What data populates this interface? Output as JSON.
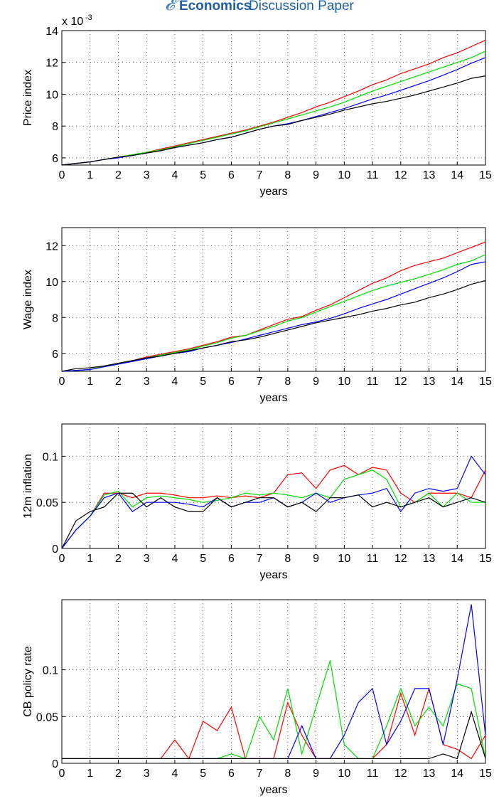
{
  "header": {
    "brand": "Economics",
    "subtitle": "Discussion Paper"
  },
  "chart_data": [
    {
      "type": "line",
      "ylabel": "Price index",
      "xlabel": "years",
      "y_exponent": {
        "base": "x 10",
        "power": "-3"
      },
      "x": [
        0,
        0.5,
        1,
        1.5,
        2,
        2.5,
        3,
        3.5,
        4,
        4.5,
        5,
        5.5,
        6,
        6.5,
        7,
        7.5,
        8,
        8.5,
        9,
        9.5,
        10,
        10.5,
        11,
        11.5,
        12,
        12.5,
        13,
        13.5,
        14,
        14.5,
        15
      ],
      "xlim": [
        0,
        15
      ],
      "xticks": [
        0,
        1,
        2,
        3,
        4,
        5,
        6,
        7,
        8,
        9,
        10,
        11,
        12,
        13,
        14,
        15
      ],
      "ylim": [
        5.55,
        14
      ],
      "yticks": [
        6,
        8,
        10,
        12,
        14
      ],
      "grid": true,
      "series": [
        {
          "color": "#ff0000",
          "values": [
            5.55,
            5.65,
            5.75,
            5.9,
            6.05,
            6.2,
            6.35,
            6.55,
            6.75,
            6.95,
            7.15,
            7.35,
            7.55,
            7.75,
            8.0,
            8.25,
            8.55,
            8.85,
            9.2,
            9.5,
            9.85,
            10.2,
            10.6,
            10.9,
            11.3,
            11.6,
            11.9,
            12.3,
            12.6,
            13.0,
            13.4
          ]
        },
        {
          "color": "#00dd00",
          "values": [
            5.55,
            5.65,
            5.75,
            5.9,
            6.05,
            6.2,
            6.35,
            6.5,
            6.7,
            6.9,
            7.1,
            7.3,
            7.5,
            7.7,
            7.95,
            8.2,
            8.45,
            8.7,
            8.95,
            9.2,
            9.5,
            9.85,
            10.2,
            10.5,
            10.8,
            11.1,
            11.4,
            11.7,
            12.0,
            12.3,
            12.7
          ]
        },
        {
          "color": "#0000ff",
          "values": [
            5.55,
            5.65,
            5.75,
            5.9,
            6.0,
            6.15,
            6.3,
            6.45,
            6.65,
            6.8,
            6.95,
            7.15,
            7.3,
            7.55,
            7.8,
            8.0,
            8.15,
            8.35,
            8.6,
            8.85,
            9.1,
            9.4,
            9.7,
            9.95,
            10.25,
            10.55,
            10.85,
            11.2,
            11.55,
            11.95,
            12.3
          ]
        },
        {
          "color": "#000000",
          "values": [
            5.55,
            5.65,
            5.75,
            5.9,
            6.05,
            6.15,
            6.3,
            6.45,
            6.65,
            6.8,
            6.95,
            7.15,
            7.3,
            7.55,
            7.8,
            8.0,
            8.1,
            8.35,
            8.55,
            8.75,
            9.0,
            9.2,
            9.4,
            9.55,
            9.75,
            9.95,
            10.2,
            10.45,
            10.7,
            11.0,
            11.15
          ]
        }
      ]
    },
    {
      "type": "line",
      "ylabel": "Wage index",
      "xlabel": "years",
      "x": [
        0,
        0.5,
        1,
        1.5,
        2,
        2.5,
        3,
        3.5,
        4,
        4.5,
        5,
        5.5,
        6,
        6.5,
        7,
        7.5,
        8,
        8.5,
        9,
        9.5,
        10,
        10.5,
        11,
        11.5,
        12,
        12.5,
        13,
        13.5,
        14,
        14.5,
        15
      ],
      "xlim": [
        0,
        15
      ],
      "xticks": [
        0,
        1,
        2,
        3,
        4,
        5,
        6,
        7,
        8,
        9,
        10,
        11,
        12,
        13,
        14,
        15
      ],
      "ylim": [
        5,
        13
      ],
      "yticks": [
        6,
        8,
        10,
        12
      ],
      "grid": true,
      "series": [
        {
          "color": "#ff0000",
          "values": [
            5.0,
            5.05,
            5.1,
            5.3,
            5.45,
            5.6,
            5.8,
            5.95,
            6.1,
            6.25,
            6.45,
            6.65,
            6.9,
            7.0,
            7.3,
            7.6,
            7.9,
            8.05,
            8.4,
            8.7,
            9.1,
            9.5,
            9.9,
            10.2,
            10.6,
            10.9,
            11.1,
            11.3,
            11.6,
            11.9,
            12.2
          ]
        },
        {
          "color": "#00dd00",
          "values": [
            5.0,
            5.05,
            5.1,
            5.3,
            5.45,
            5.6,
            5.75,
            5.9,
            6.05,
            6.2,
            6.4,
            6.6,
            6.85,
            7.0,
            7.25,
            7.5,
            7.8,
            8.0,
            8.3,
            8.6,
            8.9,
            9.2,
            9.5,
            9.75,
            9.95,
            10.15,
            10.4,
            10.65,
            10.95,
            11.15,
            11.5
          ]
        },
        {
          "color": "#0000ff",
          "values": [
            5.0,
            5.05,
            5.1,
            5.25,
            5.4,
            5.55,
            5.7,
            5.85,
            6.0,
            6.1,
            6.3,
            6.45,
            6.6,
            6.8,
            7.0,
            7.2,
            7.4,
            7.6,
            7.75,
            7.95,
            8.2,
            8.5,
            8.75,
            9.0,
            9.3,
            9.6,
            9.9,
            10.2,
            10.55,
            10.95,
            11.1
          ]
        },
        {
          "color": "#000000",
          "values": [
            5.0,
            5.15,
            5.2,
            5.3,
            5.45,
            5.6,
            5.75,
            5.85,
            6.0,
            6.15,
            6.3,
            6.45,
            6.65,
            6.75,
            6.9,
            7.1,
            7.3,
            7.5,
            7.7,
            7.85,
            8.0,
            8.15,
            8.35,
            8.5,
            8.7,
            8.85,
            9.1,
            9.3,
            9.55,
            9.85,
            10.05
          ]
        }
      ]
    },
    {
      "type": "line",
      "ylabel": "12m inflation",
      "xlabel": "years",
      "x": [
        0,
        0.5,
        1,
        1.5,
        2,
        2.5,
        3,
        3.5,
        4,
        4.5,
        5,
        5.5,
        6,
        6.5,
        7,
        7.5,
        8,
        8.5,
        9,
        9.5,
        10,
        10.5,
        11,
        11.5,
        12,
        12.5,
        13,
        13.5,
        14,
        14.5,
        15
      ],
      "xlim": [
        0,
        15
      ],
      "xticks": [
        0,
        1,
        2,
        3,
        4,
        5,
        6,
        7,
        8,
        9,
        10,
        11,
        12,
        13,
        14,
        15
      ],
      "ylim": [
        0,
        0.135
      ],
      "yticks": [
        0,
        0.05,
        0.1
      ],
      "grid": true,
      "series": [
        {
          "color": "#ff0000",
          "values": [
            0,
            0.02,
            0.035,
            0.06,
            0.06,
            0.055,
            0.06,
            0.06,
            0.058,
            0.055,
            0.055,
            0.057,
            0.055,
            0.057,
            0.055,
            0.06,
            0.08,
            0.082,
            0.065,
            0.085,
            0.09,
            0.08,
            0.088,
            0.085,
            0.06,
            0.05,
            0.06,
            0.06,
            0.06,
            0.055,
            0.085
          ]
        },
        {
          "color": "#00dd00",
          "values": [
            0,
            0.02,
            0.035,
            0.058,
            0.062,
            0.045,
            0.055,
            0.057,
            0.055,
            0.053,
            0.05,
            0.052,
            0.055,
            0.06,
            0.058,
            0.06,
            0.058,
            0.055,
            0.06,
            0.055,
            0.075,
            0.08,
            0.085,
            0.075,
            0.045,
            0.05,
            0.06,
            0.045,
            0.06,
            0.05,
            0.05
          ]
        },
        {
          "color": "#0000ff",
          "values": [
            0,
            0.02,
            0.035,
            0.055,
            0.06,
            0.04,
            0.05,
            0.05,
            0.05,
            0.048,
            0.045,
            0.055,
            0.045,
            0.05,
            0.05,
            0.055,
            0.045,
            0.05,
            0.06,
            0.05,
            0.055,
            0.058,
            0.06,
            0.065,
            0.04,
            0.06,
            0.065,
            0.062,
            0.065,
            0.1,
            0.08
          ]
        },
        {
          "color": "#000000",
          "values": [
            0,
            0.03,
            0.04,
            0.045,
            0.06,
            0.06,
            0.045,
            0.055,
            0.045,
            0.04,
            0.04,
            0.055,
            0.045,
            0.05,
            0.055,
            0.055,
            0.045,
            0.05,
            0.04,
            0.055,
            0.055,
            0.058,
            0.045,
            0.05,
            0.045,
            0.05,
            0.055,
            0.045,
            0.05,
            0.055,
            0.05
          ]
        }
      ]
    },
    {
      "type": "line",
      "ylabel": "CB policy rate",
      "xlabel": "years",
      "x": [
        0,
        0.5,
        1,
        1.5,
        2,
        2.5,
        3,
        3.5,
        4,
        4.5,
        5,
        5.5,
        6,
        6.5,
        7,
        7.5,
        8,
        8.5,
        9,
        9.5,
        10,
        10.5,
        11,
        11.5,
        12,
        12.5,
        13,
        13.5,
        14,
        14.5,
        15
      ],
      "xlim": [
        0,
        15
      ],
      "xticks": [
        0,
        1,
        2,
        3,
        4,
        5,
        6,
        7,
        8,
        9,
        10,
        11,
        12,
        13,
        14,
        15
      ],
      "ylim": [
        0,
        0.175
      ],
      "yticks": [
        0,
        0.05,
        0.1
      ],
      "grid": true,
      "series": [
        {
          "color": "#ff0000",
          "values": [
            0.005,
            0.005,
            0.005,
            0.005,
            0.005,
            0.005,
            0.005,
            0.005,
            0.025,
            0.005,
            0.045,
            0.035,
            0.06,
            0.005,
            0.005,
            0.005,
            0.065,
            0.03,
            0.005,
            0.005,
            0.005,
            0.005,
            0.005,
            0.02,
            0.075,
            0.03,
            0.08,
            0.02,
            0.015,
            0.005,
            0.03
          ]
        },
        {
          "color": "#00dd00",
          "values": [
            0.005,
            0.005,
            0.005,
            0.005,
            0.005,
            0.005,
            0.005,
            0.005,
            0.005,
            0.005,
            0.005,
            0.005,
            0.01,
            0.005,
            0.05,
            0.025,
            0.08,
            0.01,
            0.06,
            0.11,
            0.02,
            0.005,
            0.005,
            0.04,
            0.08,
            0.04,
            0.06,
            0.04,
            0.085,
            0.08,
            0.005
          ]
        },
        {
          "color": "#0000ff",
          "values": [
            0.005,
            0.005,
            0.005,
            0.005,
            0.005,
            0.005,
            0.005,
            0.005,
            0.005,
            0.005,
            0.005,
            0.005,
            0.005,
            0.005,
            0.005,
            0.005,
            0.005,
            0.04,
            0.005,
            0.005,
            0.03,
            0.065,
            0.08,
            0.02,
            0.045,
            0.08,
            0.08,
            0.02,
            0.09,
            0.17,
            0.03
          ]
        },
        {
          "color": "#000000",
          "values": [
            0.005,
            0.005,
            0.005,
            0.005,
            0.005,
            0.005,
            0.005,
            0.005,
            0.005,
            0.005,
            0.005,
            0.005,
            0.005,
            0.005,
            0.005,
            0.005,
            0.005,
            0.005,
            0.005,
            0.005,
            0.005,
            0.005,
            0.005,
            0.005,
            0.005,
            0.005,
            0.005,
            0.01,
            0.005,
            0.055,
            0.005
          ]
        }
      ]
    }
  ]
}
